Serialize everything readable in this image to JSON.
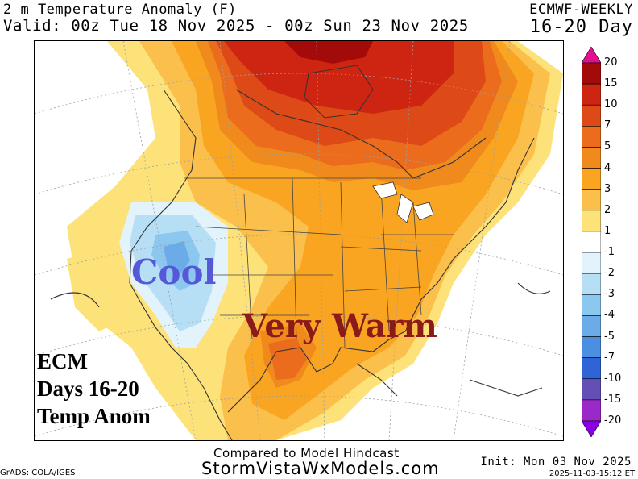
{
  "header": {
    "title": "2 m Temperature Anomaly (F)",
    "valid": "Valid: 00z Tue 18 Nov 2025 - 00z Sun 23 Nov 2025",
    "model": "ECMWF-WEEKLY",
    "period": "16-20 Day"
  },
  "map": {
    "annotations": {
      "cool": "Cool",
      "very_warm": "Very Warm",
      "ecm_line1": "ECM",
      "ecm_line2": "Days 16-20",
      "ecm_line3": "Temp Anom"
    },
    "colors": {
      "warm_1": "#fde27a",
      "warm_2": "#fbbf4b",
      "warm_3": "#f9a522",
      "warm_4": "#f08a1c",
      "warm_5": "#ec6c1d",
      "warm_7": "#dd4a17",
      "warm_10": "#cd2511",
      "warm_15": "#a30b0b",
      "cool_1": "#e3f3fb",
      "cool_2": "#b6dff5",
      "cool_3": "#8cc7ef",
      "cool_4": "#6aabe8"
    }
  },
  "legend": {
    "labels": [
      "20",
      "15",
      "10",
      "7",
      "5",
      "4",
      "3",
      "2",
      "1",
      "-1",
      "-2",
      "-3",
      "-4",
      "-5",
      "-7",
      "-10",
      "-15",
      "-20"
    ],
    "colors": [
      "#e30f8e",
      "#a30b0b",
      "#cd2511",
      "#dd4a17",
      "#ec6c1d",
      "#f08a1c",
      "#f9a522",
      "#fbbf4b",
      "#fde27a",
      "#ffffff",
      "#e3f3fb",
      "#b6dff5",
      "#8cc7ef",
      "#6aabe8",
      "#4a8fe0",
      "#2e64d6",
      "#6450b4",
      "#9b28c8",
      "#8a00e6"
    ]
  },
  "footer": {
    "compared": "Compared to Model Hindcast",
    "site": "StormVistaWxModels.com",
    "grads": "GrADS: COLA/IGES",
    "init": "Init: Mon 03 Nov 2025",
    "stamp": "2025-11-03-15:12 ET"
  }
}
